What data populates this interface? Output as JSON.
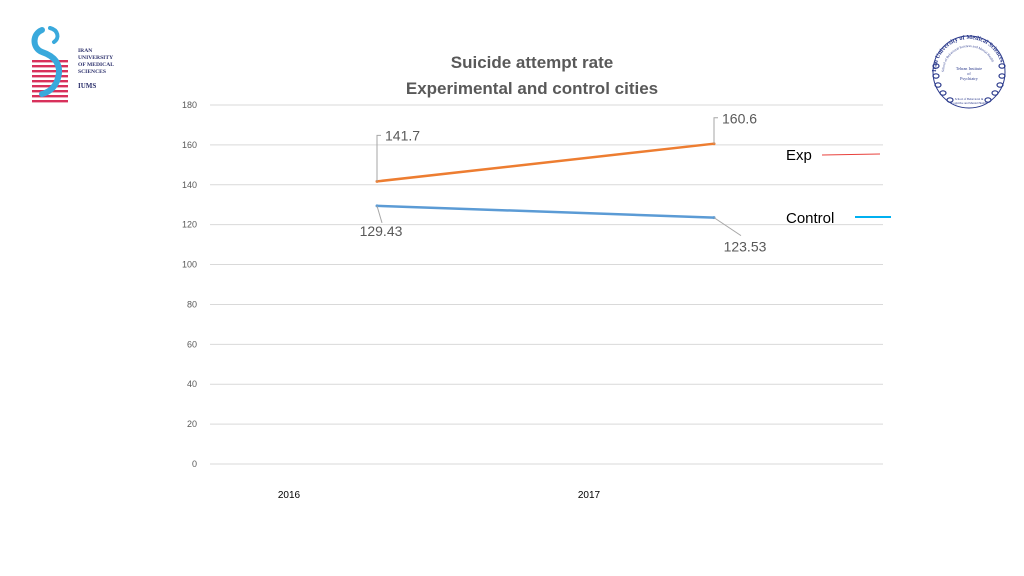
{
  "left_logo": {
    "lines": [
      "IRAN",
      "UNIVERSITY",
      "OF MEDICAL",
      "SCIENCES"
    ],
    "abbr": "IUMS"
  },
  "right_logo": {
    "arc_text": "Iran University of Medical Sciences",
    "sub_arc_text": "School of Behavioral Sciences and Mental Health",
    "center_lines": [
      "Tehran Institute",
      "of",
      "Psychiatry"
    ],
    "bottom_lines": [
      "School of Behavioral &",
      "Cognitive and Mental Health"
    ]
  },
  "colors": {
    "exp": "#ed7d31",
    "control": "#5b9bd5",
    "exp_legend": "#e8413c",
    "control_legend": "#00b0f0",
    "grid": "#d9d9d9",
    "axis_text": "#595959",
    "title": "#595959"
  },
  "chart_data": {
    "type": "line",
    "title_lines": [
      "Suicide attempt rate",
      "Experimental and control cities"
    ],
    "categories": [
      "2016",
      "2017"
    ],
    "ylim": [
      0,
      180
    ],
    "yticks": [
      0,
      20,
      40,
      60,
      80,
      100,
      120,
      140,
      160,
      180
    ],
    "series": [
      {
        "name": "Exp",
        "values": [
          141.7,
          160.6
        ],
        "labels": [
          "141.7",
          "160.6"
        ]
      },
      {
        "name": "Control",
        "values": [
          129.43,
          123.53
        ],
        "labels": [
          "129.43",
          "123.53"
        ]
      }
    ],
    "legend_position": "right"
  }
}
